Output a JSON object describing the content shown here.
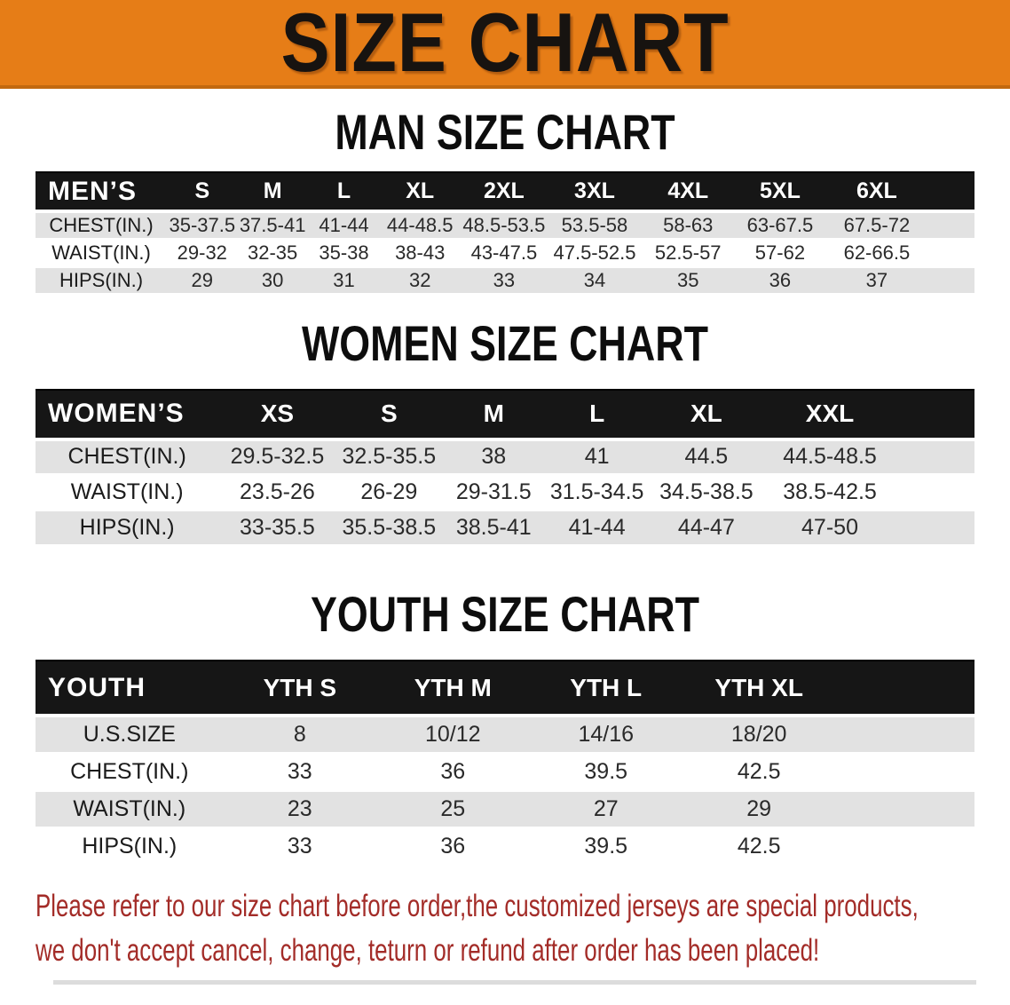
{
  "banner": {
    "title": "SIZE CHART"
  },
  "colors": {
    "banner_orange": "#E67D17",
    "banner_edge": "#C2690F",
    "header_black": "#161616",
    "stripe_gray": "#E2E2E2",
    "footer_red": "#A32C28"
  },
  "sections": [
    {
      "heading": "MAN SIZE CHART",
      "label": "MEN’S",
      "columns": [
        "S",
        "M",
        "L",
        "XL",
        "2XL",
        "3XL",
        "4XL",
        "5XL",
        "6XL"
      ],
      "rows": [
        {
          "label": "CHEST(IN.)",
          "values": [
            "35-37.5",
            "37.5-41",
            "41-44",
            "44-48.5",
            "48.5-53.5",
            "53.5-58",
            "58-63",
            "63-67.5",
            "67.5-72"
          ]
        },
        {
          "label": "WAIST(IN.)",
          "values": [
            "29-32",
            "32-35",
            "35-38",
            "38-43",
            "43-47.5",
            "47.5-52.5",
            "52.5-57",
            "57-62",
            "62-66.5"
          ]
        },
        {
          "label": "HIPS(IN.)",
          "values": [
            "29",
            "30",
            "31",
            "32",
            "33",
            "34",
            "35",
            "36",
            "37"
          ]
        }
      ]
    },
    {
      "heading": "WOMEN SIZE CHART",
      "label": "WOMEN’S",
      "columns": [
        "XS",
        "S",
        "M",
        "L",
        "XL",
        "XXL"
      ],
      "rows": [
        {
          "label": "CHEST(IN.)",
          "values": [
            "29.5-32.5",
            "32.5-35.5",
            "38",
            "41",
            "44.5",
            "44.5-48.5"
          ]
        },
        {
          "label": "WAIST(IN.)",
          "values": [
            "23.5-26",
            "26-29",
            "29-31.5",
            "31.5-34.5",
            "34.5-38.5",
            "38.5-42.5"
          ]
        },
        {
          "label": "HIPS(IN.)",
          "values": [
            "33-35.5",
            "35.5-38.5",
            "38.5-41",
            "41-44",
            "44-47",
            "47-50"
          ]
        }
      ]
    },
    {
      "heading": "YOUTH SIZE CHART",
      "label": "YOUTH",
      "columns": [
        "YTH S",
        "YTH M",
        "YTH L",
        "YTH XL"
      ],
      "rows": [
        {
          "label": "U.S.SIZE",
          "values": [
            "8",
            "10/12",
            "14/16",
            "18/20"
          ]
        },
        {
          "label": "CHEST(IN.)",
          "values": [
            "33",
            "36",
            "39.5",
            "42.5"
          ]
        },
        {
          "label": "WAIST(IN.)",
          "values": [
            "23",
            "25",
            "27",
            "29"
          ]
        },
        {
          "label": "HIPS(IN.)",
          "values": [
            "33",
            "36",
            "39.5",
            "42.5"
          ]
        }
      ]
    }
  ],
  "footer": {
    "line1": "Please refer to our size chart before order,the customized jerseys are special products,",
    "line2": "we don't accept cancel, change, teturn or refund after order has been placed!"
  }
}
